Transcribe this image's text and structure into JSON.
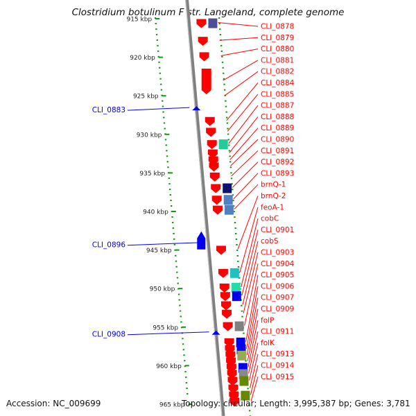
{
  "title": "Clostridium botulinum F str. Langeland, complete genome",
  "accession": "Accession: NC_009699",
  "topology": "Topology: circular; Length: 3,995,387 bp; Genes: 3,781",
  "colors": {
    "forward": "#ff0000",
    "reverse": "#0000ee",
    "axis": "#808080",
    "dots": "#119911"
  },
  "ruler": {
    "ticks": [
      {
        "label": "915 kbp",
        "kbp": 915
      },
      {
        "label": "920 kbp",
        "kbp": 920
      },
      {
        "label": "925 kbp",
        "kbp": 925
      },
      {
        "label": "930 kbp",
        "kbp": 930
      },
      {
        "label": "935 kbp",
        "kbp": 935
      },
      {
        "label": "940 kbp",
        "kbp": 940
      },
      {
        "label": "945 kbp",
        "kbp": 945
      },
      {
        "label": "950 kbp",
        "kbp": 950
      },
      {
        "label": "955 kbp",
        "kbp": 955
      },
      {
        "label": "960 kbp",
        "kbp": 960
      },
      {
        "label": "965 kbp",
        "kbp": 965
      }
    ]
  },
  "reverse_genes": [
    {
      "label": "CLI_0883",
      "kbp": 926.7
    },
    {
      "label": "CLI_0896",
      "kbp": 944.2
    },
    {
      "label": "CLI_0908",
      "kbp": 955.8
    }
  ],
  "forward_genes": [
    {
      "label": "CLI_0878",
      "kbp": 915.5,
      "domain_color": "#4a4f9a"
    },
    {
      "label": "CLI_0879",
      "kbp": 917.8
    },
    {
      "label": "CLI_0880",
      "kbp": 919.8
    },
    {
      "label": "CLI_0881",
      "kbp": 923.0
    },
    {
      "label": "CLI_0882",
      "kbp": 925.0
    },
    {
      "label": "CLI_0884",
      "kbp": 928.2
    },
    {
      "label": "CLI_0885",
      "kbp": 929.6
    },
    {
      "label": "CLI_0887",
      "kbp": 931.2,
      "domain_color": "#22cc99"
    },
    {
      "label": "CLI_0888",
      "kbp": 932.4
    },
    {
      "label": "CLI_0889",
      "kbp": 933.3
    },
    {
      "label": "CLI_0890",
      "kbp": 934.1
    },
    {
      "label": "CLI_0891",
      "kbp": 935.4
    },
    {
      "label": "CLI_0892",
      "kbp": 936.9,
      "domain_color": "#101070"
    },
    {
      "label": "CLI_0893",
      "kbp": 938.4,
      "domain_color": "#5080c0"
    },
    {
      "label": "brnQ-1",
      "kbp": 939.7,
      "domain_color": "#5080c0"
    },
    {
      "label": "brnQ-2",
      "kbp": 944.9
    },
    {
      "label": "feoA-1",
      "kbp": 947.9,
      "domain_color": "#20c0c0"
    },
    {
      "label": "cobC",
      "kbp": 949.8,
      "domain_color": "#22ddaa"
    },
    {
      "label": "CLI_0901",
      "kbp": 950.9,
      "domain_color": "#0000ee"
    },
    {
      "label": "cobS",
      "kbp": 952.1
    },
    {
      "label": "CLI_0903",
      "kbp": 953.2
    },
    {
      "label": "CLI_0904",
      "kbp": 954.8,
      "domain_color": "#808080"
    },
    {
      "label": "CLI_0905",
      "kbp": 956.9,
      "domain_color": "#0000ee"
    },
    {
      "label": "CLI_0906",
      "kbp": 957.8,
      "domain_color": "#0000ee"
    },
    {
      "label": "CLI_0907",
      "kbp": 958.6,
      "domain_color": "#99aa55"
    },
    {
      "label": "CLI_0909",
      "kbp": 959.4
    },
    {
      "label": "folP",
      "kbp": 960.2,
      "domain_color": "#0000ee"
    },
    {
      "label": "CLI_0911",
      "kbp": 961.0,
      "domain_color": "#888888"
    },
    {
      "label": "folK",
      "kbp": 961.9,
      "domain_color": "#668800"
    },
    {
      "label": "CLI_0913",
      "kbp": 962.9
    },
    {
      "label": "CLI_0914",
      "kbp": 963.8,
      "domain_color": "#668800"
    },
    {
      "label": "CLI_0915",
      "kbp": 964.6
    }
  ]
}
